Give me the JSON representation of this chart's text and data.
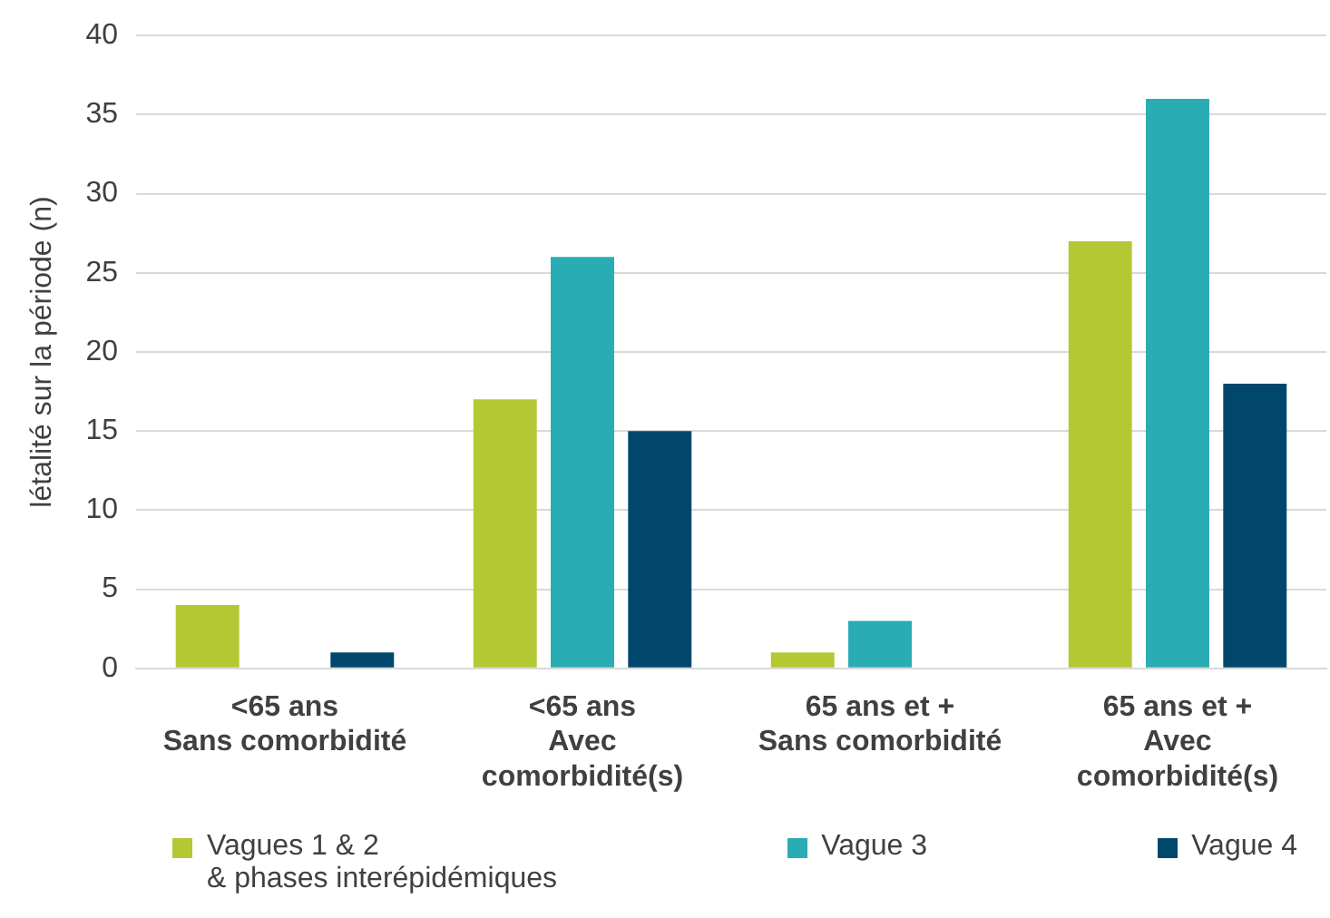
{
  "chart_data": {
    "type": "bar",
    "ylabel": "létalité sur la période (n)",
    "categories": [
      "<65 ans\nSans comorbidité",
      "<65 ans\nAvec\ncomorbidité(s)",
      "65 ans et +\nSans comorbidité",
      "65 ans et +\nAvec\ncomorbidité(s)"
    ],
    "series": [
      {
        "name": "Vagues 1 & 2\n& phases interépidémiques",
        "color": "#b3c833",
        "values": [
          4,
          17,
          1,
          27
        ]
      },
      {
        "name": "Vague 3",
        "color": "#2aacb4",
        "values": [
          0,
          26,
          3,
          36
        ]
      },
      {
        "name": "Vague 4",
        "color": "#00476b",
        "values": [
          1,
          15,
          0,
          18
        ]
      }
    ],
    "ylim": [
      0,
      40
    ],
    "yticks": [
      0,
      5,
      10,
      15,
      20,
      25,
      30,
      35,
      40
    ],
    "grid": "y",
    "legend": "bottom"
  }
}
